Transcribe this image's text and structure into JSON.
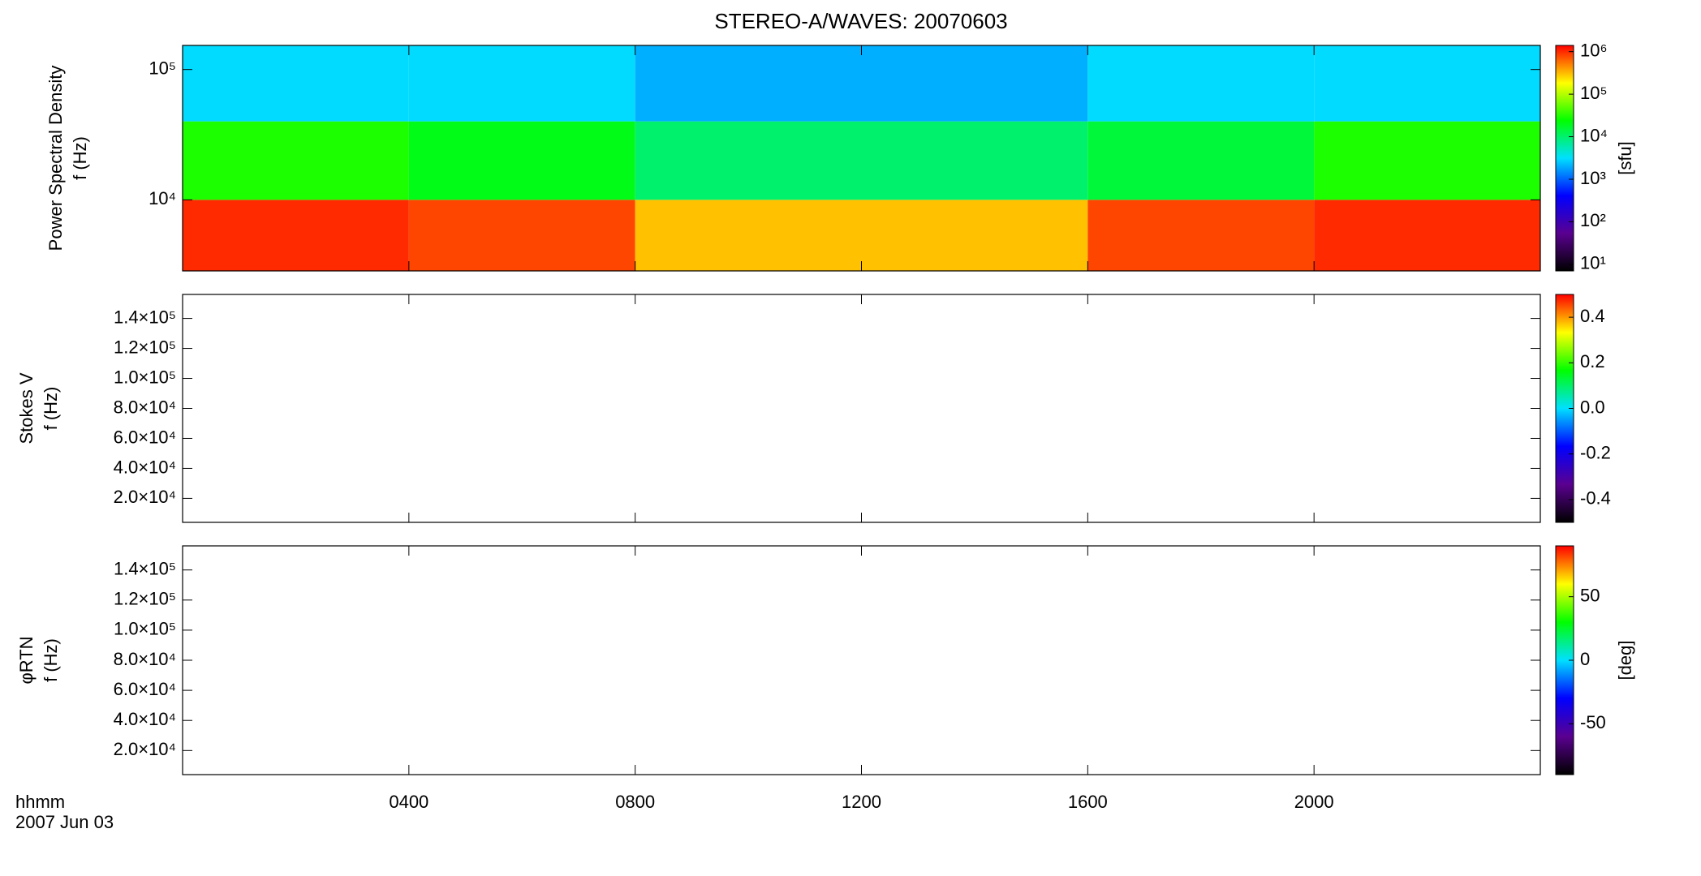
{
  "title": "STEREO-A/WAVES: 20070603",
  "x_label": "hhmm",
  "date": "2007 Jun 03",
  "chart_data": [
    {
      "type": "heatmap",
      "ylabel": [
        "Power Spectral Density",
        "f (Hz)"
      ],
      "log_y": true,
      "ylim": [
        2850,
        153000
      ],
      "yticks": [
        {
          "value": 10000,
          "label": "10⁴"
        },
        {
          "value": 100000,
          "label": "10⁵"
        }
      ],
      "x_bins": [
        0,
        4,
        8,
        12,
        16,
        20,
        24
      ],
      "y_bins": [
        2850,
        10000,
        40000,
        153000
      ],
      "values": [
        [
          1000000,
          800000,
          300000,
          300000,
          800000,
          1000000
        ],
        [
          30000,
          20000,
          10000,
          10000,
          15000,
          30000
        ],
        [
          3000,
          3000,
          2000,
          2000,
          3000,
          3000
        ]
      ],
      "zlog": true,
      "zlim": [
        7,
        1400000
      ],
      "zticks": [
        {
          "value": 10,
          "label": "10¹"
        },
        {
          "value": 100,
          "label": "10²"
        },
        {
          "value": 1000,
          "label": "10³"
        },
        {
          "value": 10000,
          "label": "10⁴"
        },
        {
          "value": 100000,
          "label": "10⁵"
        },
        {
          "value": 1000000,
          "label": "10⁶"
        }
      ],
      "zlabel": "[sfu]",
      "colormap": [
        "#000000",
        "#5a0090",
        "#0000ff",
        "#00e0ff",
        "#00ff00",
        "#ffff00",
        "#ff0000"
      ]
    },
    {
      "type": "heatmap",
      "ylabel": [
        "Stokes V",
        "f (Hz)"
      ],
      "log_y": false,
      "ylim": [
        4000,
        156000
      ],
      "yticks": [
        {
          "value": 20000,
          "label": "2.0×10⁴"
        },
        {
          "value": 40000,
          "label": "4.0×10⁴"
        },
        {
          "value": 60000,
          "label": "6.0×10⁴"
        },
        {
          "value": 80000,
          "label": "8.0×10⁴"
        },
        {
          "value": 100000,
          "label": "1.0×10⁵"
        },
        {
          "value": 120000,
          "label": "1.2×10⁵"
        },
        {
          "value": 140000,
          "label": "1.4×10⁵"
        }
      ],
      "zlog": false,
      "zlim": [
        -0.5,
        0.5
      ],
      "zticks": [
        -0.4,
        -0.2,
        {
          "value": 0,
          "label": "0.0"
        },
        0.2,
        0.4
      ],
      "colormap": [
        "#000000",
        "#5a0090",
        "#0000ff",
        "#00e0ff",
        "#00ff00",
        "#ffff00",
        "#ff0000"
      ]
    },
    {
      "type": "heatmap",
      "ylabel": [
        "φRTN",
        "f (Hz)"
      ],
      "log_y": false,
      "ylim": [
        4000,
        156000
      ],
      "yticks": [
        {
          "value": 20000,
          "label": "2.0×10⁴"
        },
        {
          "value": 40000,
          "label": "4.0×10⁴"
        },
        {
          "value": 60000,
          "label": "6.0×10⁴"
        },
        {
          "value": 80000,
          "label": "8.0×10⁴"
        },
        {
          "value": 100000,
          "label": "1.0×10⁵"
        },
        {
          "value": 120000,
          "label": "1.2×10⁵"
        },
        {
          "value": 140000,
          "label": "1.4×10⁵"
        }
      ],
      "zlog": false,
      "zlim": [
        -90,
        90
      ],
      "zticks": [
        -50,
        0,
        50
      ],
      "zlabel": "[deg]",
      "colormap": [
        "#000000",
        "#5a0090",
        "#0000ff",
        "#00e0ff",
        "#00ff00",
        "#ffff00",
        "#ff0000"
      ],
      "xlim": [
        0,
        24
      ],
      "xticks": [
        {
          "value": 4,
          "label": "0400"
        },
        {
          "value": 8,
          "label": "0800"
        },
        {
          "value": 12,
          "label": "1200"
        },
        {
          "value": 16,
          "label": "1600"
        },
        {
          "value": 20,
          "label": "2000"
        }
      ]
    }
  ]
}
